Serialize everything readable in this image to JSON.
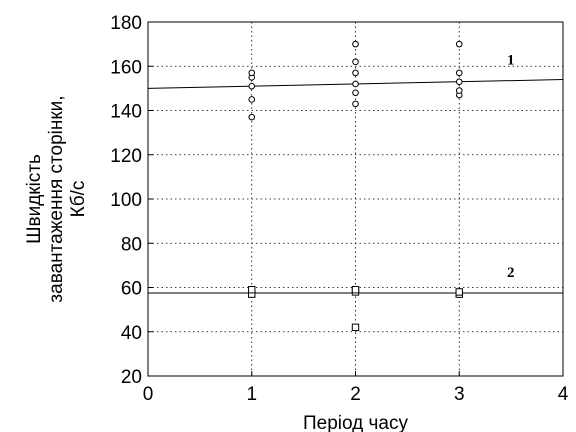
{
  "chart_data": {
    "type": "scatter",
    "xlabel": "Період часу",
    "ylabel_lines": [
      "Швидкість",
      "завантаження сторінки,",
      "Кб/с"
    ],
    "xlim": [
      0,
      4
    ],
    "ylim": [
      20,
      180
    ],
    "xticks": [
      0,
      1,
      2,
      3,
      4
    ],
    "yticks": [
      20,
      40,
      60,
      80,
      100,
      120,
      140,
      160,
      180
    ],
    "grid": "dotted",
    "series": [
      {
        "label": "1",
        "marker": "circle",
        "points": [
          [
            1,
            137
          ],
          [
            1,
            145
          ],
          [
            1,
            151
          ],
          [
            1,
            155
          ],
          [
            1,
            157
          ],
          [
            2,
            143
          ],
          [
            2,
            148
          ],
          [
            2,
            152
          ],
          [
            2,
            157
          ],
          [
            2,
            162
          ],
          [
            2,
            170
          ],
          [
            3,
            147
          ],
          [
            3,
            149
          ],
          [
            3,
            153
          ],
          [
            3,
            157
          ],
          [
            3,
            170
          ]
        ],
        "trend": {
          "x": [
            0,
            4
          ],
          "y": [
            150,
            154
          ]
        }
      },
      {
        "label": "2",
        "marker": "square",
        "points": [
          [
            1,
            57
          ],
          [
            1,
            59
          ],
          [
            2,
            42
          ],
          [
            2,
            58
          ],
          [
            2,
            59
          ],
          [
            3,
            57
          ],
          [
            3,
            58
          ]
        ],
        "trend": {
          "x": [
            0,
            4
          ],
          "y": [
            57.5,
            57.5
          ]
        }
      }
    ]
  }
}
